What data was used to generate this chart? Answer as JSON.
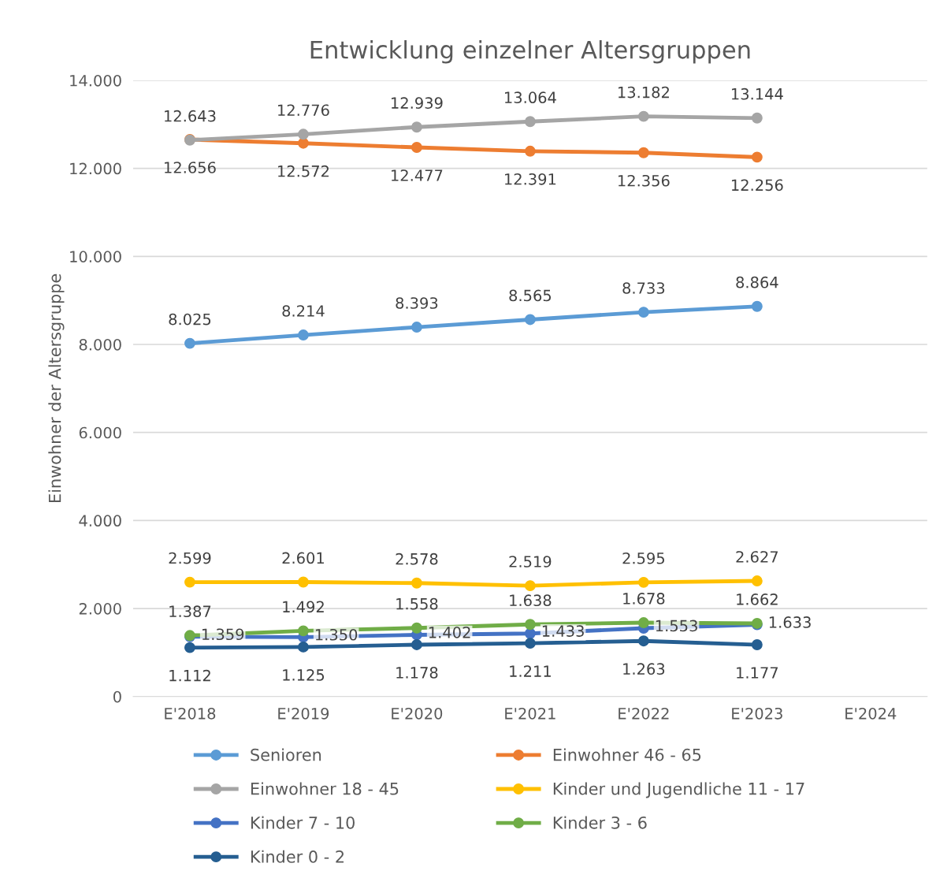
{
  "chart_data": {
    "type": "line",
    "title": "Entwicklung einzelner Altersgruppen",
    "ylabel": "Einwohner der Altersgruppe",
    "categories": [
      "E'2018",
      "E'2019",
      "E'2020",
      "E'2021",
      "E'2022",
      "E'2023",
      "E'2024"
    ],
    "series": [
      {
        "name": "Senioren",
        "color": "#5b9bd5",
        "values": [
          8025,
          8214,
          8393,
          8565,
          8733,
          8864,
          null
        ],
        "value_labels": [
          "8.025",
          "8.214",
          "8.393",
          "8.565",
          "8.733",
          "8.864",
          null
        ]
      },
      {
        "name": "Einwohner 46 - 65",
        "color": "#ed7d31",
        "values": [
          12656,
          12572,
          12477,
          12391,
          12356,
          12256,
          null
        ],
        "value_labels": [
          "12.656",
          "12.572",
          "12.477",
          "12.391",
          "12.356",
          "12.256",
          null
        ]
      },
      {
        "name": "Einwohner 18 - 45",
        "color": "#a5a5a5",
        "values": [
          12643,
          12776,
          12939,
          13064,
          13182,
          13144,
          null
        ],
        "value_labels": [
          "12.643",
          "12.776",
          "12.939",
          "13.064",
          "13.182",
          "13.144",
          null
        ]
      },
      {
        "name": "Kinder und Jugendliche 11 - 17",
        "color": "#ffc000",
        "values": [
          2599,
          2601,
          2578,
          2519,
          2595,
          2627,
          null
        ],
        "value_labels": [
          "2.599",
          "2.601",
          "2.578",
          "2.519",
          "2.595",
          "2.627",
          null
        ]
      },
      {
        "name": "Kinder 7 - 10",
        "color": "#4472c4",
        "values": [
          1359,
          1350,
          1402,
          1433,
          1553,
          1633,
          null
        ],
        "value_labels": [
          "1.359",
          "1.350",
          "1.402",
          "1.433",
          "1.553",
          "1.633",
          null
        ]
      },
      {
        "name": "Kinder 3 - 6",
        "color": "#70ad47",
        "values": [
          1387,
          1492,
          1558,
          1638,
          1678,
          1662,
          null
        ],
        "value_labels": [
          "1.387",
          "1.492",
          "1.558",
          "1.638",
          "1.678",
          "1.662",
          null
        ]
      },
      {
        "name": "Kinder 0 - 2",
        "color": "#255e91",
        "values": [
          1112,
          1125,
          1178,
          1211,
          1263,
          1177,
          null
        ],
        "value_labels": [
          "1.112",
          "1.125",
          "1.178",
          "1.211",
          "1.263",
          "1.177",
          null
        ]
      }
    ],
    "ylim": [
      0,
      14000
    ],
    "yticks": [
      {
        "value": 0,
        "label": "0"
      },
      {
        "value": 2000,
        "label": "2.000"
      },
      {
        "value": 4000,
        "label": "4.000"
      },
      {
        "value": 6000,
        "label": "6.000"
      },
      {
        "value": 8000,
        "label": "8.000"
      },
      {
        "value": 10000,
        "label": "10.000"
      },
      {
        "value": 12000,
        "label": "12.000"
      },
      {
        "value": 14000,
        "label": "14.000"
      }
    ],
    "grid": "y",
    "legend": "bottom",
    "marker": "circle",
    "line_style": "solid"
  }
}
